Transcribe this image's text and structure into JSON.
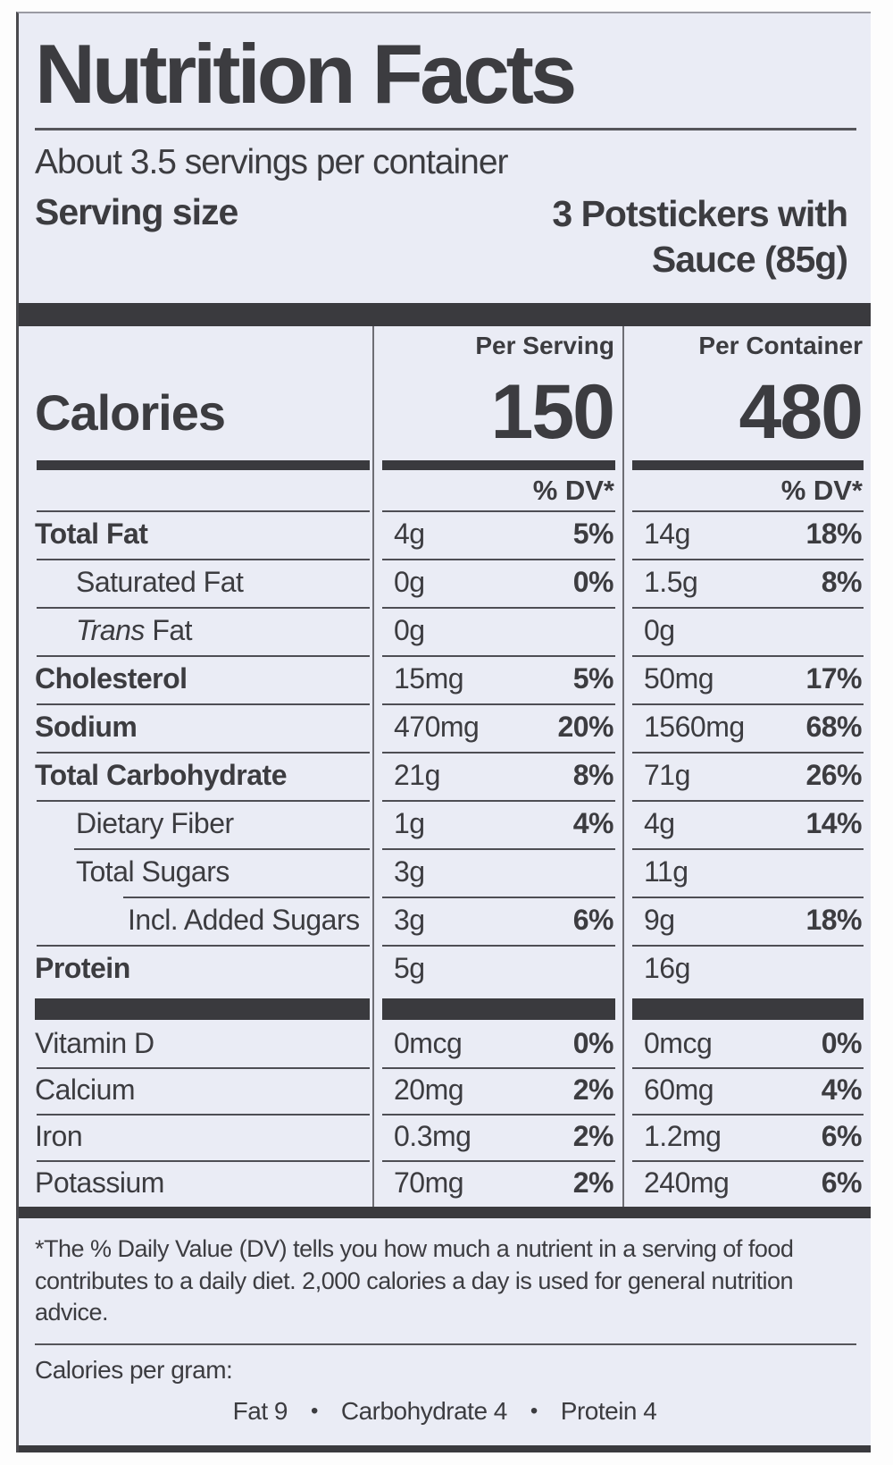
{
  "header": {
    "title": "Nutrition Facts",
    "servings_per_container": "About 3.5 servings per container",
    "serving_size_label": "Serving size",
    "serving_size_line1": "3 Potstickers with",
    "serving_size_line2": "Sauce (85g)"
  },
  "calories_section": {
    "column_serving": "Per Serving",
    "column_container": "Per Container",
    "label": "Calories",
    "per_serving": "150",
    "per_container": "480",
    "dv_header": "% DV*"
  },
  "nutrients": [
    {
      "name": "Total Fat",
      "style": "bold",
      "indent": 0,
      "rule": "full",
      "serving": {
        "amount": "4g",
        "dv": "5%"
      },
      "container": {
        "amount": "14g",
        "dv": "18%"
      }
    },
    {
      "name": "Saturated Fat",
      "style": "regular",
      "indent": 1,
      "rule": "full",
      "serving": {
        "amount": "0g",
        "dv": "0%"
      },
      "container": {
        "amount": "1.5g",
        "dv": "8%"
      }
    },
    {
      "name": "Trans Fat",
      "style": "italic-first",
      "indent": 1,
      "rule": "full",
      "serving": {
        "amount": "0g",
        "dv": ""
      },
      "container": {
        "amount": "0g",
        "dv": ""
      }
    },
    {
      "name": "Cholesterol",
      "style": "bold",
      "indent": 0,
      "rule": "full",
      "serving": {
        "amount": "15mg",
        "dv": "5%"
      },
      "container": {
        "amount": "50mg",
        "dv": "17%"
      }
    },
    {
      "name": "Sodium",
      "style": "bold",
      "indent": 0,
      "rule": "full",
      "serving": {
        "amount": "470mg",
        "dv": "20%"
      },
      "container": {
        "amount": "1560mg",
        "dv": "68%"
      }
    },
    {
      "name": "Total Carbohydrate",
      "style": "bold",
      "indent": 0,
      "rule": "full",
      "serving": {
        "amount": "21g",
        "dv": "8%"
      },
      "container": {
        "amount": "71g",
        "dv": "26%"
      }
    },
    {
      "name": "Dietary Fiber",
      "style": "regular",
      "indent": 1,
      "rule": "full",
      "serving": {
        "amount": "1g",
        "dv": "4%"
      },
      "container": {
        "amount": "4g",
        "dv": "14%"
      }
    },
    {
      "name": "Total Sugars",
      "style": "regular",
      "indent": 1,
      "rule": "indent1",
      "serving": {
        "amount": "3g",
        "dv": ""
      },
      "container": {
        "amount": "11g",
        "dv": ""
      }
    },
    {
      "name": "Incl. Added Sugars",
      "style": "regular",
      "indent": 2,
      "rule": "indent2",
      "serving": {
        "amount": "3g",
        "dv": "6%"
      },
      "container": {
        "amount": "9g",
        "dv": "18%"
      }
    },
    {
      "name": "Protein",
      "style": "bold",
      "indent": 0,
      "rule": "full",
      "serving": {
        "amount": "5g",
        "dv": ""
      },
      "container": {
        "amount": "16g",
        "dv": ""
      }
    }
  ],
  "vitamins": [
    {
      "name": "Vitamin D",
      "style": "regular",
      "indent": 0,
      "rule": "none",
      "serving": {
        "amount": "0mcg",
        "dv": "0%"
      },
      "container": {
        "amount": "0mcg",
        "dv": "0%"
      }
    },
    {
      "name": "Calcium",
      "style": "regular",
      "indent": 0,
      "rule": "full",
      "serving": {
        "amount": "20mg",
        "dv": "2%"
      },
      "container": {
        "amount": "60mg",
        "dv": "4%"
      }
    },
    {
      "name": "Iron",
      "style": "regular",
      "indent": 0,
      "rule": "full",
      "serving": {
        "amount": "0.3mg",
        "dv": "2%"
      },
      "container": {
        "amount": "1.2mg",
        "dv": "6%"
      }
    },
    {
      "name": "Potassium",
      "style": "regular",
      "indent": 0,
      "rule": "full",
      "serving": {
        "amount": "70mg",
        "dv": "2%"
      },
      "container": {
        "amount": "240mg",
        "dv": "6%"
      }
    }
  ],
  "footnote": "*The % Daily Value (DV) tells you how much a nutrient in a serving of food contributes to a daily diet. 2,000 calories a day is used for general nutrition advice.",
  "calories_per_gram": {
    "label": "Calories per gram:",
    "fat": "Fat 9",
    "separator": "•",
    "carbohydrate": "Carbohydrate 4",
    "protein": "Protein 4"
  },
  "colors": {
    "background": "#eaecf5",
    "ink": "#3c3c40",
    "bar": "#3a3a3e"
  }
}
